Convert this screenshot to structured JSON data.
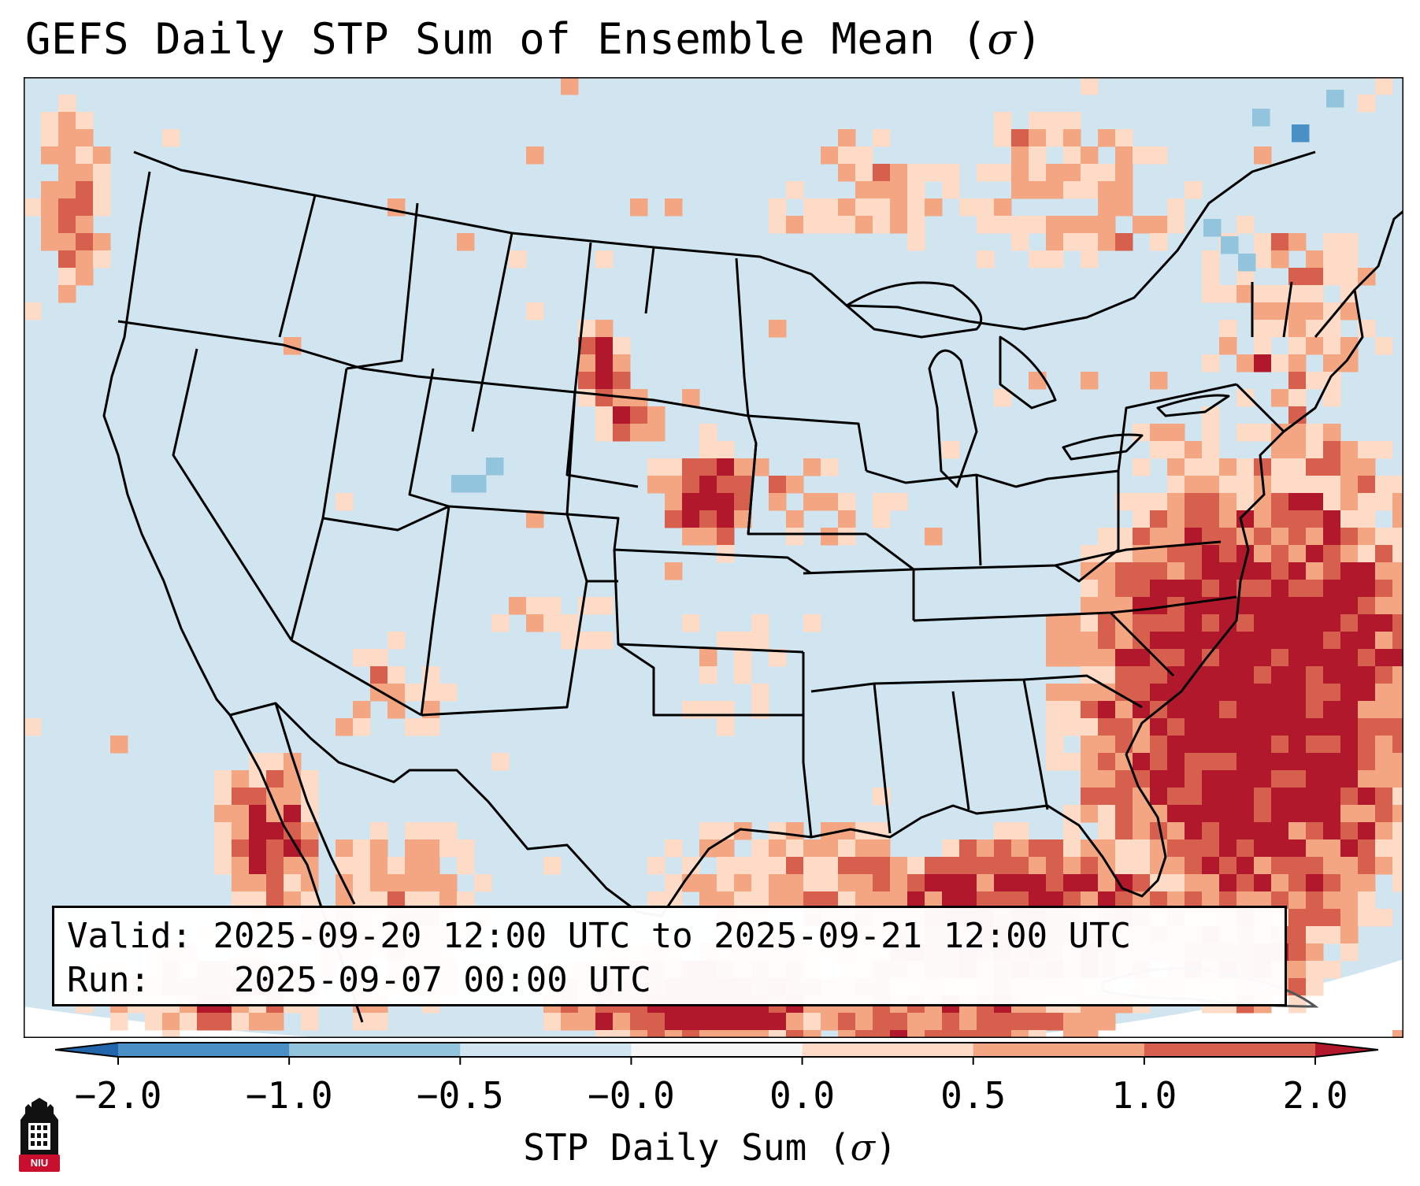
{
  "title": {
    "main": "GEFS Daily STP Sum of Ensemble Mean (",
    "symbol": "σ",
    "close": ")"
  },
  "info_box": {
    "valid_label": "Valid:",
    "valid_value": "2025-09-20 12:00 UTC to 2025-09-21 12:00 UTC",
    "run_label": "Run:",
    "run_value": "2025-09-07 00:00 UTC"
  },
  "colorbar": {
    "label_text": "STP Daily Sum (",
    "label_symbol": "σ",
    "label_close": ")",
    "tick_labels": [
      "−2.0",
      "−1.0",
      "−0.5",
      "−0.0",
      "0.0",
      "0.5",
      "1.0",
      "2.0"
    ],
    "bins": [
      {
        "range": "−2.0 to −1.0",
        "color": "#4a8fc6"
      },
      {
        "range": "−1.0 to −0.5",
        "color": "#92c4de"
      },
      {
        "range": "−0.5 to −0.0",
        "color": "#d1e5f0"
      },
      {
        "range": "−0.0 to 0.0",
        "color": "#f7f7f7"
      },
      {
        "range": "0.0 to 0.5",
        "color": "#fddbc7"
      },
      {
        "range": "0.5 to 1.0",
        "color": "#f4a582"
      },
      {
        "range": "1.0 to 2.0",
        "color": "#d6604d"
      }
    ],
    "under_color": "#2166ac",
    "over_color": "#b2182b"
  },
  "map": {
    "region": "Contiguous United States",
    "background_color": "#d1e5f0",
    "hotspots": [
      {
        "name": "Gulf of Mexico",
        "level": "high"
      },
      {
        "name": "Western Atlantic off Southeast coast",
        "level": "very high"
      },
      {
        "name": "Western Nebraska",
        "level": "high"
      },
      {
        "name": "Southwest Nebraska",
        "level": "high"
      },
      {
        "name": "Gulf of California",
        "level": "high"
      },
      {
        "name": "Colorado",
        "level": "negative"
      }
    ]
  },
  "logo": {
    "text": "NIU"
  }
}
